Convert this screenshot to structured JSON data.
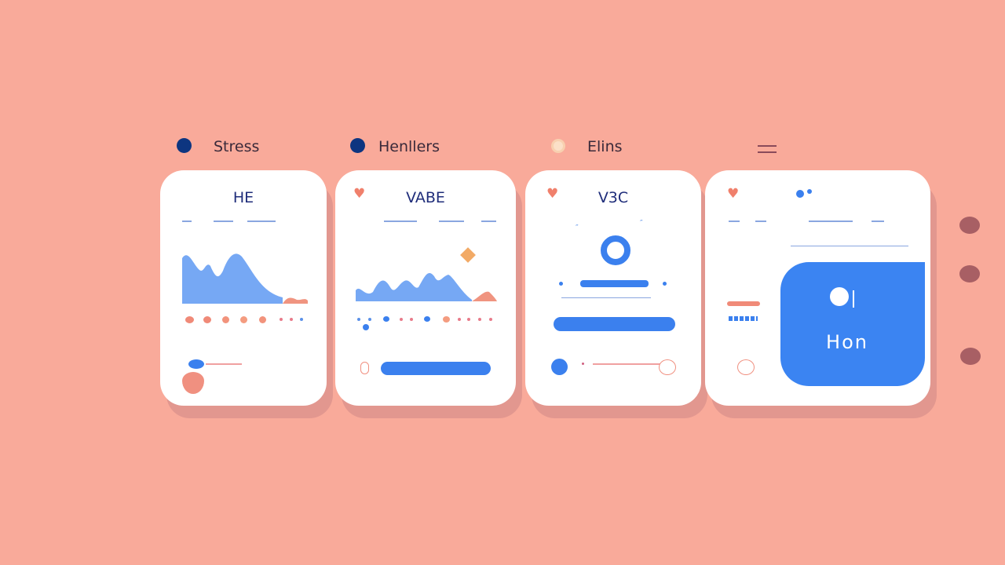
{
  "legend": [
    {
      "label": "Stress",
      "icon": "dot-icon",
      "color": "#0d3580"
    },
    {
      "label": "Henllers",
      "icon": "dot-icon",
      "color": "#0d3580"
    },
    {
      "label": "Elins",
      "icon": "ring-icon",
      "color": "#f6c6a8"
    }
  ],
  "menu_icon": "menu-icon",
  "cards": [
    {
      "title": "HE"
    },
    {
      "title": "VABE"
    },
    {
      "title": "V3C"
    },
    {
      "title": "",
      "panel_label": "Hon"
    }
  ],
  "colors": {
    "background": "#f9aa9a",
    "accent": "#3b80ee",
    "wave": "#76a8f4",
    "coral": "#f0806c",
    "navy": "#1f2d7a"
  }
}
